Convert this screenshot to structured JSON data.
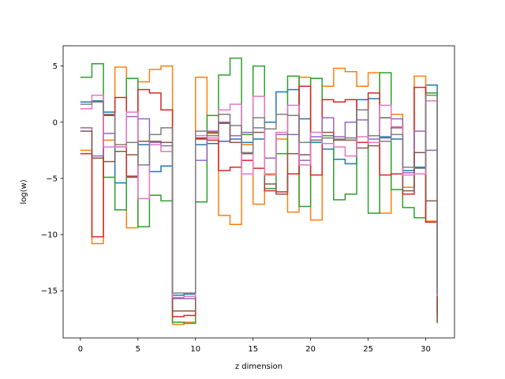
{
  "chart_data": {
    "type": "line",
    "drawstyle": "steps-post",
    "xlabel": "z dimension",
    "ylabel": "log(w)",
    "xlim": [
      -1.5,
      32.5
    ],
    "ylim": [
      -19.2,
      6.8
    ],
    "xticks": [
      0,
      5,
      10,
      15,
      20,
      25,
      30
    ],
    "yticks": [
      -15,
      -10,
      -5,
      0,
      5
    ],
    "grid": false,
    "legend": "none",
    "x": [
      0,
      1,
      2,
      3,
      4,
      5,
      6,
      7,
      8,
      9,
      10,
      11,
      12,
      13,
      14,
      15,
      16,
      17,
      18,
      19,
      20,
      21,
      22,
      23,
      24,
      25,
      26,
      27,
      28,
      29,
      30,
      31
    ],
    "series": [
      {
        "color": "#1f77b4",
        "values": [
          1.8,
          1.9,
          0.9,
          -5.4,
          -4.9,
          -2.0,
          -4.4,
          -3.9,
          -15.4,
          -15.3,
          -2.0,
          -1.9,
          -1.7,
          -1.5,
          -1.8,
          -1.5,
          0.0,
          2.7,
          2.9,
          0.3,
          -1.8,
          -2.4,
          -3.3,
          -3.7,
          2.0,
          2.1,
          -1.3,
          -1.5,
          -4.3,
          -4.0,
          3.3,
          -15.3
        ]
      },
      {
        "color": "#ff7f0e",
        "values": [
          -2.5,
          -10.8,
          -1.6,
          4.9,
          -9.4,
          3.6,
          4.7,
          5.0,
          -18.0,
          -17.8,
          4.0,
          -1.0,
          -8.3,
          -9.1,
          -2.0,
          -7.3,
          -4.6,
          -1.5,
          -8.0,
          4.0,
          -8.7,
          3.2,
          4.8,
          4.5,
          3.2,
          4.4,
          -8.1,
          0.7,
          -5.8,
          4.1,
          -8.8,
          -17.3
        ]
      },
      {
        "color": "#2ca02c",
        "values": [
          4.0,
          5.2,
          -4.9,
          -7.8,
          3.9,
          -9.3,
          -6.5,
          -7.0,
          -17.8,
          -17.9,
          -7.1,
          0.6,
          4.2,
          5.7,
          -1.1,
          5.0,
          -5.9,
          -2.8,
          4.1,
          -7.5,
          3.9,
          -1.2,
          -6.9,
          -6.4,
          -1.3,
          -8.1,
          4.4,
          -6.0,
          -7.6,
          -8.5,
          2.6,
          -17.9
        ]
      },
      {
        "color": "#d62728",
        "values": [
          -2.8,
          -10.2,
          0.6,
          2.2,
          -4.8,
          2.9,
          2.6,
          1.1,
          -17.3,
          -17.2,
          -1.4,
          -1.6,
          -4.3,
          -4.0,
          -3.4,
          -4.1,
          -6.1,
          -6.2,
          -4.6,
          3.2,
          -4.7,
          2.0,
          1.8,
          2.0,
          -1.8,
          2.6,
          -4.7,
          -4.6,
          -6.4,
          3.1,
          -8.9,
          -17.1
        ]
      },
      {
        "color": "#9467bd",
        "values": [
          -0.5,
          -3.0,
          -1.0,
          -2.2,
          0.5,
          0.3,
          -1.8,
          -2.1,
          -15.7,
          -15.7,
          -3.4,
          -0.8,
          0.0,
          -1.2,
          -0.9,
          -0.5,
          -3.2,
          -1.1,
          -1.1,
          -3.4,
          -1.3,
          0.4,
          -1.3,
          0.0,
          0.2,
          -1.5,
          -1.4,
          0.3,
          -4.5,
          -0.8,
          -2.5,
          -15.6
        ]
      },
      {
        "color": "#8c564b",
        "values": [
          -0.8,
          -3.2,
          -3.5,
          -2.6,
          -2.9,
          -1.7,
          -1.7,
          -1.8,
          -16.8,
          -16.8,
          -1.5,
          -0.9,
          -0.1,
          -1.8,
          -2.8,
          -0.9,
          -5.5,
          -6.4,
          -2.8,
          -2.9,
          -1.6,
          -0.9,
          -1.6,
          -1.6,
          -2.3,
          -2.1,
          0.4,
          -0.5,
          -6.1,
          -2.7,
          -7.0,
          -17.8
        ]
      },
      {
        "color": "#e377c2",
        "values": [
          1.2,
          2.4,
          -2.2,
          -2.2,
          0.9,
          -6.8,
          -2.0,
          -2.6,
          -15.6,
          -15.5,
          -1.2,
          -1.4,
          1.1,
          1.6,
          -4.6,
          2.3,
          -4.7,
          -0.9,
          1.5,
          -3.8,
          -0.9,
          -1.9,
          -2.2,
          -3.0,
          -1.3,
          -1.8,
          1.5,
          -0.4,
          -4.7,
          -4.6,
          1.9,
          -15.5
        ]
      },
      {
        "color": "#7f7f7f",
        "values": [
          1.6,
          1.8,
          0.7,
          -2.0,
          -1.8,
          -3.8,
          -1.1,
          -0.5,
          -15.2,
          -15.2,
          -0.8,
          -1.2,
          0.7,
          -0.3,
          -2.7,
          0.4,
          -0.6,
          0.7,
          0.6,
          -1.8,
          -1.6,
          -1.4,
          -1.5,
          -1.4,
          1.1,
          -1.2,
          -1.7,
          -1.1,
          -4.0,
          -4.1,
          2.4,
          -15.2
        ]
      }
    ]
  }
}
